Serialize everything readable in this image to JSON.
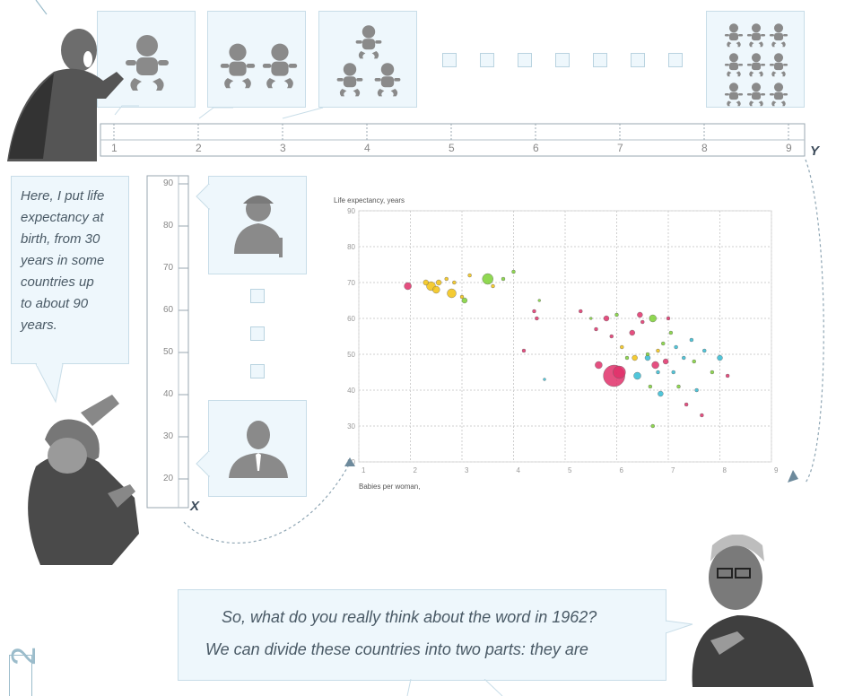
{
  "x_ruler": {
    "ticks": [
      "1",
      "2",
      "3",
      "4",
      "5",
      "6",
      "7",
      "8",
      "9"
    ],
    "axis_letter": "Y"
  },
  "y_ruler": {
    "ticks": [
      "90",
      "80",
      "70",
      "60",
      "50",
      "40",
      "30",
      "20"
    ],
    "axis_letter": "X"
  },
  "caption_left": {
    "lines": [
      "Here, I put life",
      "expectancy at",
      "birth, from 30",
      "years in some",
      "countries up",
      "to about 90",
      "years."
    ]
  },
  "caption_bottom": {
    "line1": "So, what do you really think about the word in 1962?",
    "line2": "We can divide these countries into two parts: they are"
  },
  "page_number": "2",
  "icons": {
    "one_baby": "baby-icon",
    "two_babies": "baby-icon",
    "three_babies": "baby-icon",
    "nine_babies": "baby-icon",
    "old_person": "elderly-person-icon",
    "young_person": "person-icon"
  },
  "chart_data": {
    "type": "scatter",
    "title": "",
    "ylabel": "Life expectancy, years",
    "xlabel": "Babies per woman,",
    "xlim": [
      1,
      9
    ],
    "ylim": [
      20,
      90
    ],
    "x_ticks": [
      "1",
      "2",
      "3",
      "4",
      "5",
      "6",
      "7",
      "8",
      "9"
    ],
    "y_ticks": [
      "20",
      "30",
      "40",
      "50",
      "60",
      "70",
      "80",
      "90"
    ],
    "grid": true,
    "points": [
      {
        "x": 1.95,
        "y": 69,
        "r": 4,
        "color": "#e0306a"
      },
      {
        "x": 2.3,
        "y": 70,
        "r": 3,
        "color": "#f2c20f"
      },
      {
        "x": 2.4,
        "y": 69,
        "r": 5,
        "color": "#f2c20f"
      },
      {
        "x": 2.5,
        "y": 68,
        "r": 4,
        "color": "#f2c20f"
      },
      {
        "x": 2.55,
        "y": 70,
        "r": 3,
        "color": "#f2c20f"
      },
      {
        "x": 2.7,
        "y": 71,
        "r": 2,
        "color": "#f2c20f"
      },
      {
        "x": 2.8,
        "y": 67,
        "r": 5,
        "color": "#f2c20f"
      },
      {
        "x": 2.85,
        "y": 70,
        "r": 2,
        "color": "#f2c20f"
      },
      {
        "x": 3.0,
        "y": 66,
        "r": 2,
        "color": "#f2c20f"
      },
      {
        "x": 3.05,
        "y": 65,
        "r": 3,
        "color": "#7cd134"
      },
      {
        "x": 3.15,
        "y": 72,
        "r": 2,
        "color": "#f2c20f"
      },
      {
        "x": 3.5,
        "y": 71,
        "r": 6,
        "color": "#7cd134"
      },
      {
        "x": 3.6,
        "y": 69,
        "r": 2,
        "color": "#f2c20f"
      },
      {
        "x": 3.8,
        "y": 71,
        "r": 2,
        "color": "#7cd134"
      },
      {
        "x": 4.0,
        "y": 73,
        "r": 2,
        "color": "#7cd134"
      },
      {
        "x": 4.4,
        "y": 62,
        "r": 2,
        "color": "#e0306a"
      },
      {
        "x": 4.45,
        "y": 60,
        "r": 2,
        "color": "#e0306a"
      },
      {
        "x": 4.2,
        "y": 51,
        "r": 2,
        "color": "#e0306a"
      },
      {
        "x": 4.5,
        "y": 65,
        "r": 1.5,
        "color": "#7cd134"
      },
      {
        "x": 4.6,
        "y": 43,
        "r": 1.5,
        "color": "#33bcd4"
      },
      {
        "x": 5.3,
        "y": 62,
        "r": 2,
        "color": "#e0306a"
      },
      {
        "x": 5.5,
        "y": 60,
        "r": 1.5,
        "color": "#7cd134"
      },
      {
        "x": 5.6,
        "y": 57,
        "r": 2,
        "color": "#e0306a"
      },
      {
        "x": 5.8,
        "y": 60,
        "r": 3,
        "color": "#e0306a"
      },
      {
        "x": 5.9,
        "y": 55,
        "r": 2,
        "color": "#e0306a"
      },
      {
        "x": 5.65,
        "y": 47,
        "r": 4,
        "color": "#e0306a"
      },
      {
        "x": 5.95,
        "y": 44,
        "r": 12,
        "color": "#e0306a"
      },
      {
        "x": 6.05,
        "y": 45,
        "r": 7,
        "color": "#e0306a"
      },
      {
        "x": 6.1,
        "y": 52,
        "r": 2,
        "color": "#f2c20f"
      },
      {
        "x": 6.2,
        "y": 49,
        "r": 2,
        "color": "#7cd134"
      },
      {
        "x": 6.3,
        "y": 56,
        "r": 3,
        "color": "#e0306a"
      },
      {
        "x": 6.35,
        "y": 49,
        "r": 3,
        "color": "#f2c20f"
      },
      {
        "x": 6.4,
        "y": 44,
        "r": 4,
        "color": "#33bcd4"
      },
      {
        "x": 6.5,
        "y": 59,
        "r": 2,
        "color": "#e0306a"
      },
      {
        "x": 6.45,
        "y": 61,
        "r": 3,
        "color": "#e0306a"
      },
      {
        "x": 6.6,
        "y": 50,
        "r": 2,
        "color": "#7cd134"
      },
      {
        "x": 6.6,
        "y": 49,
        "r": 3,
        "color": "#33bcd4"
      },
      {
        "x": 6.65,
        "y": 41,
        "r": 2,
        "color": "#7cd134"
      },
      {
        "x": 6.7,
        "y": 60,
        "r": 4,
        "color": "#7cd134"
      },
      {
        "x": 6.75,
        "y": 47,
        "r": 4,
        "color": "#e0306a"
      },
      {
        "x": 6.8,
        "y": 51,
        "r": 2,
        "color": "#f2c20f"
      },
      {
        "x": 6.8,
        "y": 45,
        "r": 2,
        "color": "#33bcd4"
      },
      {
        "x": 6.85,
        "y": 39,
        "r": 3,
        "color": "#33bcd4"
      },
      {
        "x": 6.9,
        "y": 53,
        "r": 2,
        "color": "#7cd134"
      },
      {
        "x": 6.95,
        "y": 48,
        "r": 3,
        "color": "#e0306a"
      },
      {
        "x": 7.0,
        "y": 60,
        "r": 2,
        "color": "#e0306a"
      },
      {
        "x": 7.05,
        "y": 56,
        "r": 2,
        "color": "#7cd134"
      },
      {
        "x": 7.1,
        "y": 45,
        "r": 2,
        "color": "#33bcd4"
      },
      {
        "x": 7.15,
        "y": 52,
        "r": 2,
        "color": "#33bcd4"
      },
      {
        "x": 7.2,
        "y": 41,
        "r": 2,
        "color": "#7cd134"
      },
      {
        "x": 7.3,
        "y": 49,
        "r": 2,
        "color": "#33bcd4"
      },
      {
        "x": 7.35,
        "y": 36,
        "r": 2,
        "color": "#e0306a"
      },
      {
        "x": 7.45,
        "y": 54,
        "r": 2,
        "color": "#33bcd4"
      },
      {
        "x": 7.5,
        "y": 48,
        "r": 2,
        "color": "#7cd134"
      },
      {
        "x": 7.55,
        "y": 40,
        "r": 2,
        "color": "#33bcd4"
      },
      {
        "x": 7.65,
        "y": 33,
        "r": 2,
        "color": "#e0306a"
      },
      {
        "x": 7.7,
        "y": 51,
        "r": 2,
        "color": "#33bcd4"
      },
      {
        "x": 7.85,
        "y": 45,
        "r": 2,
        "color": "#7cd134"
      },
      {
        "x": 8.0,
        "y": 49,
        "r": 3,
        "color": "#33bcd4"
      },
      {
        "x": 8.15,
        "y": 44,
        "r": 2,
        "color": "#e0306a"
      },
      {
        "x": 6.7,
        "y": 30,
        "r": 2,
        "color": "#7cd134"
      },
      {
        "x": 6.0,
        "y": 61,
        "r": 2,
        "color": "#7cd134"
      }
    ]
  }
}
